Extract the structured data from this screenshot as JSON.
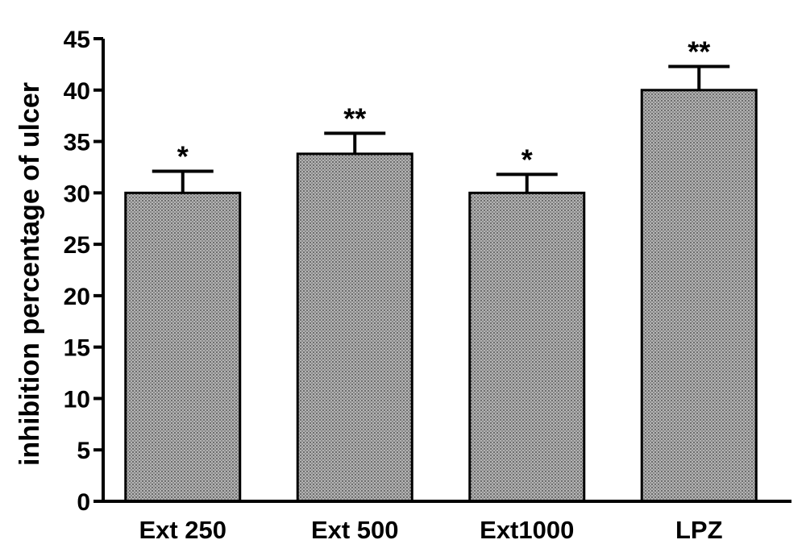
{
  "chart_data": {
    "type": "bar",
    "title": "",
    "xlabel": "",
    "ylabel": "inhibition percentage  of ulcer",
    "categories": [
      "Ext 250",
      "Ext 500",
      "Ext1000",
      "LPZ"
    ],
    "values": [
      30,
      33.8,
      30,
      40
    ],
    "errors": [
      2.1,
      2.0,
      1.8,
      2.3
    ],
    "significance": [
      "*",
      "**",
      "*",
      "**"
    ],
    "ylim": [
      0,
      45
    ],
    "yticks": [
      0,
      5,
      10,
      15,
      20,
      25,
      30,
      35,
      40,
      45
    ],
    "grid": false,
    "legend": "none",
    "bar_color": "#9a9a9a"
  }
}
